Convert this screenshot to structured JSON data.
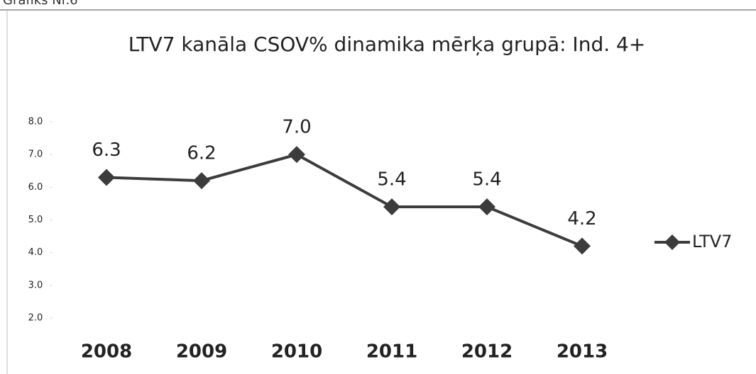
{
  "caption": "Grafiks Nr.6",
  "chart_data": {
    "type": "line",
    "title": "LTV7 kanāla CSOV% dinamika mērķa grupā: Ind. 4+",
    "categories": [
      "2008",
      "2009",
      "2010",
      "2011",
      "2012",
      "2013"
    ],
    "series": [
      {
        "name": "LTV7",
        "color": "#3c3c3c",
        "values": [
          6.3,
          6.2,
          7.0,
          5.4,
          5.4,
          4.2
        ],
        "value_labels": [
          "6.3",
          "6.2",
          "7.0",
          "5.4",
          "5.4",
          "4.2"
        ]
      }
    ],
    "ylim": [
      2,
      8
    ],
    "yticks": [
      {
        "value": 2,
        "label": "2.0"
      },
      {
        "value": 3,
        "label": "3.0"
      },
      {
        "value": 4,
        "label": "4.0"
      },
      {
        "value": 5,
        "label": "5.0"
      },
      {
        "value": 6,
        "label": "6.0"
      },
      {
        "value": 7,
        "label": "7.0"
      },
      {
        "value": 8,
        "label": "8.0"
      }
    ],
    "grid": false,
    "legend": "right"
  }
}
